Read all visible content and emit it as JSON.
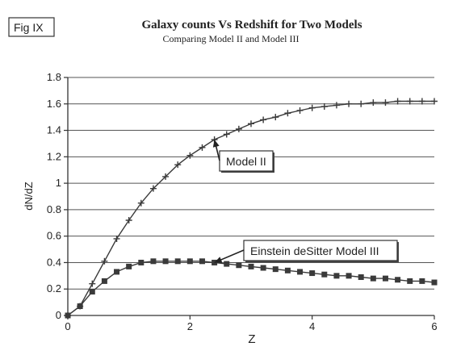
{
  "figure_tag": "Fig IX",
  "chart_data": {
    "type": "line",
    "title": "Galaxy counts Vs Redshift for Two Models",
    "subtitle": "Comparing Model II and Model III",
    "xlabel": "Z",
    "ylabel": "dN/dZ",
    "xlim": [
      0,
      6
    ],
    "ylim": [
      0,
      1.8
    ],
    "xticks": [
      0,
      2,
      4,
      6
    ],
    "xtick_labels": [
      "0",
      "2",
      "4",
      "6"
    ],
    "yticks": [
      0,
      0.2,
      0.4,
      0.6,
      0.8,
      1.0,
      1.2,
      1.4,
      1.6,
      1.8
    ],
    "ytick_labels": [
      "0",
      "0.2",
      "0.4",
      "0.6",
      "0.8",
      "1",
      "1.2",
      "1.4",
      "1.6",
      "1.8"
    ],
    "grid": "horizontal",
    "line_color": "#3a3a3a",
    "series": [
      {
        "name": "Model II",
        "marker": "plus",
        "x": [
          0,
          0.2,
          0.4,
          0.6,
          0.8,
          1.0,
          1.2,
          1.4,
          1.6,
          1.8,
          2.0,
          2.2,
          2.4,
          2.6,
          2.8,
          3.0,
          3.2,
          3.4,
          3.6,
          3.8,
          4.0,
          4.2,
          4.4,
          4.6,
          4.8,
          5.0,
          5.2,
          5.4,
          5.6,
          5.8,
          6.0
        ],
        "values": [
          0,
          0.07,
          0.24,
          0.41,
          0.58,
          0.72,
          0.85,
          0.96,
          1.05,
          1.14,
          1.21,
          1.27,
          1.33,
          1.37,
          1.41,
          1.45,
          1.48,
          1.5,
          1.53,
          1.55,
          1.57,
          1.58,
          1.59,
          1.6,
          1.6,
          1.61,
          1.61,
          1.62,
          1.62,
          1.62,
          1.62
        ]
      },
      {
        "name": "Einstein deSitter Model III",
        "marker": "square",
        "x": [
          0,
          0.2,
          0.4,
          0.6,
          0.8,
          1.0,
          1.2,
          1.4,
          1.6,
          1.8,
          2.0,
          2.2,
          2.4,
          2.6,
          2.8,
          3.0,
          3.2,
          3.4,
          3.6,
          3.8,
          4.0,
          4.2,
          4.4,
          4.6,
          4.8,
          5.0,
          5.2,
          5.4,
          5.6,
          5.8,
          6.0
        ],
        "values": [
          0,
          0.07,
          0.18,
          0.26,
          0.33,
          0.37,
          0.4,
          0.41,
          0.41,
          0.41,
          0.41,
          0.41,
          0.4,
          0.39,
          0.38,
          0.37,
          0.36,
          0.35,
          0.34,
          0.33,
          0.32,
          0.31,
          0.3,
          0.3,
          0.29,
          0.28,
          0.28,
          0.27,
          0.26,
          0.26,
          0.25
        ]
      }
    ],
    "annotations": [
      {
        "text": "Model II",
        "series": 0,
        "x": 2.4,
        "y": 1.33
      },
      {
        "text": "Einstein deSitter Model III",
        "series": 1,
        "x": 2.4,
        "y": 0.4
      }
    ]
  }
}
